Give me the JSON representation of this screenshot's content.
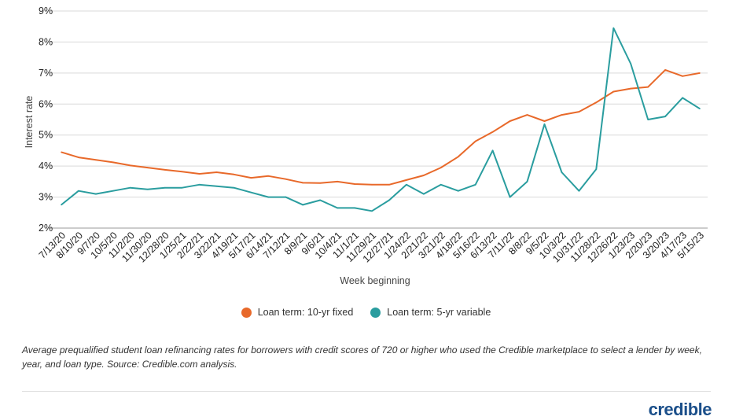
{
  "chart_data": {
    "type": "line",
    "xlabel": "Week beginning",
    "ylabel": "Interest rate",
    "ylim": [
      2,
      9
    ],
    "y_ticks": [
      "2%",
      "3%",
      "4%",
      "5%",
      "6%",
      "7%",
      "8%",
      "9%"
    ],
    "x_tick_labels": [
      "7/13/20",
      "8/10/20",
      "9/7/20",
      "10/5/20",
      "11/2/20",
      "11/30/20",
      "12/28/20",
      "1/25/21",
      "2/22/21",
      "3/22/21",
      "4/19/21",
      "5/17/21",
      "6/14/21",
      "7/12/21",
      "8/9/21",
      "9/6/21",
      "10/4/21",
      "11/1/21",
      "11/29/21",
      "12/27/21",
      "1/24/22",
      "2/21/22",
      "3/21/22",
      "4/18/22",
      "5/16/22",
      "6/13/22",
      "7/11/22",
      "8/8/22",
      "9/5/22",
      "10/3/22",
      "10/31/22",
      "11/28/22",
      "12/26/22",
      "1/23/23",
      "2/20/23",
      "3/20/23",
      "4/17/23",
      "5/15/23"
    ],
    "grid": true,
    "legend_position": "bottom",
    "series": [
      {
        "name": "Loan term: 10-yr fixed",
        "color": "#e8692a",
        "anchors": [
          [
            "7/13/20",
            4.45
          ],
          [
            "8/10/20",
            4.28
          ],
          [
            "9/7/20",
            4.2
          ],
          [
            "10/5/20",
            4.12
          ],
          [
            "11/2/20",
            4.02
          ],
          [
            "11/30/20",
            3.95
          ],
          [
            "12/28/20",
            3.88
          ],
          [
            "1/25/21",
            3.82
          ],
          [
            "2/22/21",
            3.75
          ],
          [
            "3/22/21",
            3.8
          ],
          [
            "4/19/21",
            3.73
          ],
          [
            "5/17/21",
            3.62
          ],
          [
            "6/14/21",
            3.68
          ],
          [
            "7/12/21",
            3.58
          ],
          [
            "8/9/21",
            3.46
          ],
          [
            "9/6/21",
            3.45
          ],
          [
            "10/4/21",
            3.5
          ],
          [
            "11/1/21",
            3.42
          ],
          [
            "11/29/21",
            3.4
          ],
          [
            "12/27/21",
            3.4
          ],
          [
            "1/24/22",
            3.55
          ],
          [
            "2/21/22",
            3.7
          ],
          [
            "3/21/22",
            3.95
          ],
          [
            "4/18/22",
            4.3
          ],
          [
            "5/16/22",
            4.8
          ],
          [
            "6/13/22",
            5.1
          ],
          [
            "7/11/22",
            5.45
          ],
          [
            "8/8/22",
            5.65
          ],
          [
            "9/5/22",
            5.45
          ],
          [
            "10/3/22",
            5.65
          ],
          [
            "10/31/22",
            5.75
          ],
          [
            "11/28/22",
            6.05
          ],
          [
            "12/26/22",
            6.4
          ],
          [
            "1/23/23",
            6.5
          ],
          [
            "2/20/23",
            6.55
          ],
          [
            "3/20/23",
            7.1
          ],
          [
            "4/17/23",
            6.9
          ],
          [
            "5/15/23",
            7.0
          ]
        ]
      },
      {
        "name": "Loan term: 5-yr variable",
        "color": "#2a9d9f",
        "anchors": [
          [
            "7/13/20",
            2.75
          ],
          [
            "8/10/20",
            3.2
          ],
          [
            "9/7/20",
            3.1
          ],
          [
            "10/5/20",
            3.2
          ],
          [
            "11/2/20",
            3.3
          ],
          [
            "11/30/20",
            3.25
          ],
          [
            "12/28/20",
            3.3
          ],
          [
            "1/25/21",
            3.3
          ],
          [
            "2/22/21",
            3.4
          ],
          [
            "3/22/21",
            3.35
          ],
          [
            "4/19/21",
            3.3
          ],
          [
            "5/17/21",
            3.15
          ],
          [
            "6/14/21",
            3.0
          ],
          [
            "7/12/21",
            3.0
          ],
          [
            "8/9/21",
            2.75
          ],
          [
            "9/6/21",
            2.9
          ],
          [
            "10/4/21",
            2.65
          ],
          [
            "11/1/21",
            2.65
          ],
          [
            "11/29/21",
            2.55
          ],
          [
            "12/27/21",
            2.9
          ],
          [
            "1/24/22",
            3.4
          ],
          [
            "2/21/22",
            3.1
          ],
          [
            "3/21/22",
            3.4
          ],
          [
            "4/18/22",
            3.2
          ],
          [
            "5/16/22",
            3.4
          ],
          [
            "6/13/22",
            4.5
          ],
          [
            "7/11/22",
            3.0
          ],
          [
            "8/8/22",
            3.5
          ],
          [
            "9/5/22",
            5.35
          ],
          [
            "10/3/22",
            3.8
          ],
          [
            "10/31/22",
            3.2
          ],
          [
            "11/28/22",
            3.9
          ],
          [
            "12/26/22",
            8.45
          ],
          [
            "1/23/23",
            7.3
          ],
          [
            "2/20/23",
            5.5
          ],
          [
            "3/20/23",
            5.6
          ],
          [
            "4/17/23",
            6.2
          ],
          [
            "5/15/23",
            5.85
          ]
        ]
      }
    ]
  },
  "caption": "Average prequalified student loan refinancing rates for borrowers with credit scores of 720 or higher who used the Credible marketplace to select a lender by week, year, and loan type. Source: Credible.com analysis.",
  "logo_text": "credible"
}
